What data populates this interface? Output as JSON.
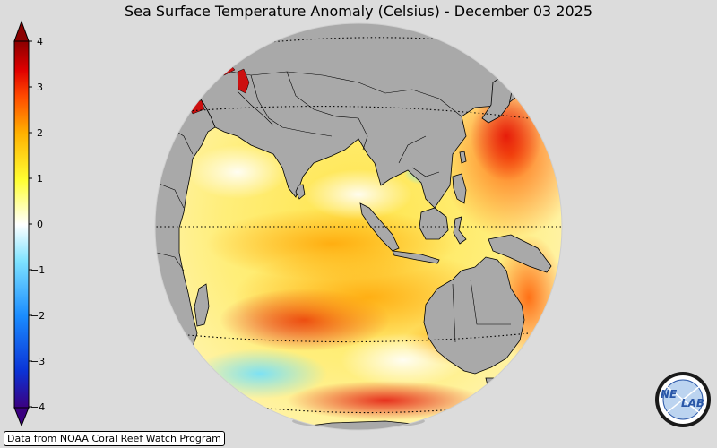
{
  "title": "Sea Surface Temperature Anomaly (Celsius) - December 03 2025",
  "colorbar": {
    "min": -4,
    "max": 4,
    "ticks": [
      "4",
      "3",
      "2",
      "1",
      "0",
      "−1",
      "−2",
      "−3",
      "−4"
    ],
    "colors": [
      "#3b0080",
      "#0b33d6",
      "#1a8cff",
      "#7fe3ff",
      "#ffffff",
      "#ffff33",
      "#ffb000",
      "#ff4a00",
      "#e00000",
      "#8b0000"
    ]
  },
  "map": {
    "land_color": "#a9a9a9",
    "ocean_feature": "sea-surface-temperature-anomaly-field"
  },
  "credit": "Data from NOAA Coral Reef Watch Program",
  "logo": {
    "text_left": "NE",
    "text_right": "LAB",
    "icon": "nexlab-globe-logo"
  }
}
